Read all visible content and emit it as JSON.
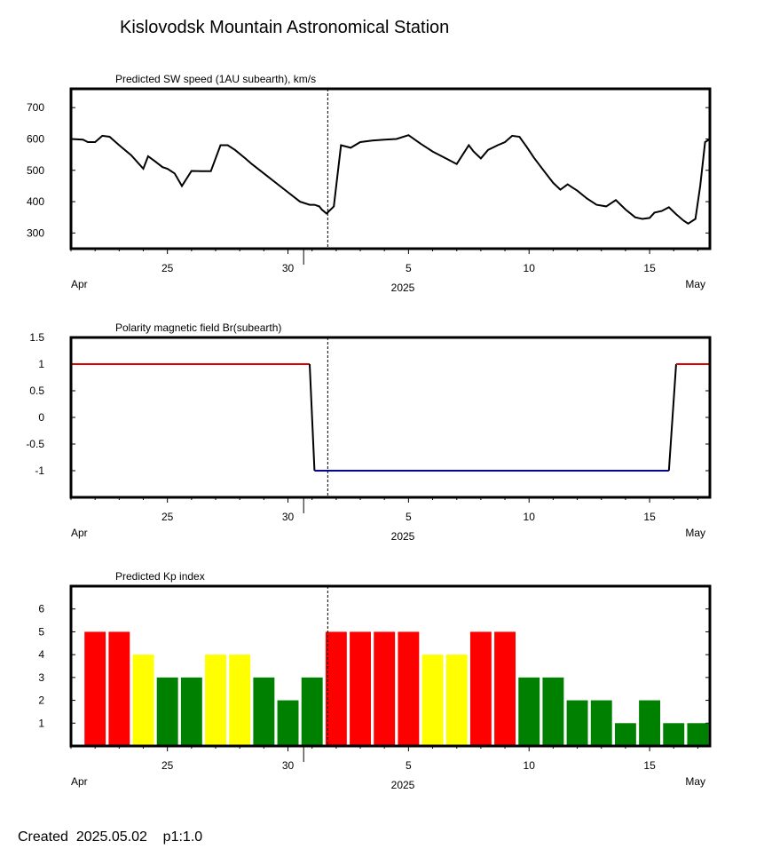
{
  "title": "Kislovodsk Mountain Astronomical Station",
  "footer": "Created  2025.05.02    p1:1.0",
  "colors": {
    "positive": "#e00000",
    "negative": "#0000c0",
    "kp_red": "#ff0000",
    "kp_yellow": "#ffff00",
    "kp_green": "#008000"
  },
  "chart_data": [
    {
      "type": "line",
      "title": "Predicted SW speed (1AU subearth), km/s",
      "x_range": [
        21.0,
        47.5
      ],
      "ylim": [
        250,
        760
      ],
      "y_ticks": [
        300,
        400,
        500,
        600,
        700
      ],
      "x_ticks": [
        "25",
        "30",
        "5",
        "10",
        "15"
      ],
      "x_tick_days": [
        25,
        30,
        35,
        40,
        45
      ],
      "month_labels": [
        "Apr",
        "2025",
        "May"
      ],
      "today_day": 31.65,
      "series": [
        {
          "x": [
            21.0,
            21.5,
            21.7,
            22.0,
            22.3,
            22.6,
            23.0,
            23.5,
            24.0,
            24.2,
            24.5,
            24.8,
            25.0,
            25.3,
            25.6,
            26.0,
            26.4,
            26.8,
            27.2,
            27.5,
            27.8,
            28.2,
            28.5,
            29.0,
            29.5,
            30.0,
            30.5,
            30.9,
            31.1,
            31.3,
            31.4,
            31.6,
            31.9,
            32.2,
            32.6,
            33.0,
            33.5,
            34.0,
            34.5,
            35.0,
            35.5,
            35.8,
            36.0,
            36.5,
            37.0,
            37.5,
            37.7,
            38.0,
            38.3,
            38.7,
            39.0,
            39.3,
            39.6,
            39.9,
            40.2,
            40.6,
            41.0,
            41.3,
            41.6,
            41.8,
            42.0,
            42.4,
            42.8,
            43.2,
            43.6,
            44.0,
            44.4,
            44.7,
            45.0,
            45.2,
            45.5,
            45.8,
            46.1,
            46.4,
            46.6,
            46.9,
            47.1,
            47.3,
            47.5
          ],
          "y": [
            600,
            598,
            590,
            590,
            610,
            607,
            580,
            548,
            505,
            545,
            528,
            510,
            505,
            490,
            450,
            498,
            497,
            497,
            580,
            580,
            565,
            540,
            520,
            490,
            460,
            430,
            400,
            390,
            390,
            385,
            375,
            362,
            385,
            580,
            572,
            590,
            595,
            598,
            600,
            612,
            585,
            570,
            560,
            540,
            520,
            580,
            560,
            538,
            565,
            580,
            590,
            610,
            607,
            575,
            540,
            500,
            460,
            438,
            455,
            445,
            435,
            410,
            390,
            385,
            405,
            375,
            350,
            345,
            348,
            365,
            370,
            382,
            360,
            340,
            330,
            345,
            450,
            590,
            600
          ]
        }
      ]
    },
    {
      "type": "line",
      "title": "Polarity magnetic field  Br(subearth)",
      "x_range": [
        21.0,
        47.5
      ],
      "ylim": [
        -1.5,
        1.5
      ],
      "y_ticks": [
        1.5,
        1,
        0.5,
        0,
        -0.5,
        -1
      ],
      "x_ticks": [
        "25",
        "30",
        "5",
        "10",
        "15"
      ],
      "x_tick_days": [
        25,
        30,
        35,
        40,
        45
      ],
      "month_labels": [
        "Apr",
        "2025",
        "May"
      ],
      "today_day": 31.65,
      "series": [
        {
          "x": [
            21.0,
            30.9,
            31.1,
            45.8,
            46.1,
            47.5
          ],
          "y": [
            1,
            1,
            -1,
            -1,
            1,
            1
          ]
        }
      ]
    },
    {
      "type": "bar",
      "title": "Predicted Kp index",
      "x_range": [
        21.0,
        47.5
      ],
      "ylim": [
        0,
        7
      ],
      "y_ticks": [
        1,
        2,
        3,
        4,
        5,
        6
      ],
      "x_ticks": [
        "25",
        "30",
        "5",
        "10",
        "15"
      ],
      "x_tick_days": [
        25,
        30,
        35,
        40,
        45
      ],
      "month_labels": [
        "Apr",
        "2025",
        "May"
      ],
      "today_day": 31.65,
      "bar_days": [
        22,
        23,
        24,
        25,
        26,
        27,
        28,
        29,
        30,
        31,
        32,
        33,
        34,
        35,
        36,
        37,
        38,
        39,
        40,
        41,
        42,
        43,
        44,
        45,
        46,
        47
      ],
      "values": [
        5,
        5,
        4,
        3,
        3,
        4,
        4,
        3,
        2,
        3,
        5,
        5,
        5,
        5,
        4,
        4,
        5,
        5,
        3,
        3,
        2,
        2,
        1,
        2,
        1,
        1
      ]
    }
  ]
}
